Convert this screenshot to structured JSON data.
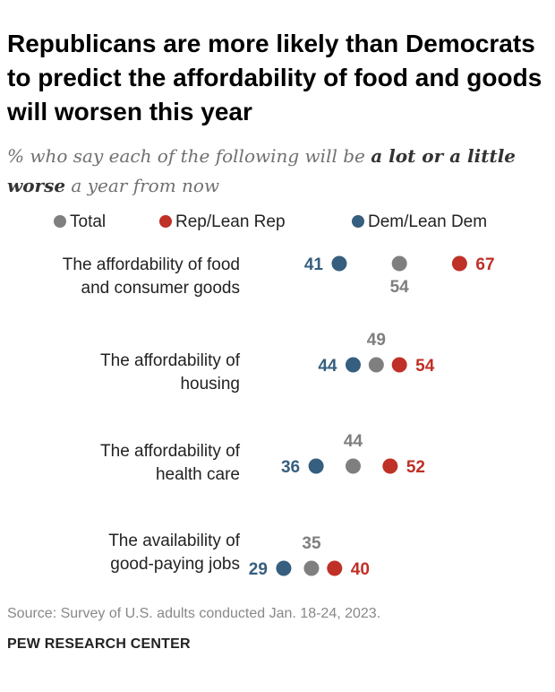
{
  "title": "Republicans are more likely than Democrats to predict the affordability of food and goods will worsen this year",
  "subtitle": {
    "pre": "% who say each of the following will be ",
    "emphasis": "a lot or a little worse",
    "post": " a year from now"
  },
  "legend": [
    {
      "label": "Total",
      "color": "#7f7f7f"
    },
    {
      "label": "Rep/Lean Rep",
      "color": "#bf3026"
    },
    {
      "label": "Dem/Lean Dem",
      "color": "#365e7e"
    }
  ],
  "chart_data": {
    "type": "dot",
    "categories": [
      "The affordability of food and consumer goods",
      "The affordability of housing",
      "The affordability of health care",
      "The availability of good-paying jobs"
    ],
    "category_lines": [
      [
        "The affordability of food",
        "and consumer goods"
      ],
      [
        "The affordability of",
        "housing"
      ],
      [
        "The affordability of",
        "health care"
      ],
      [
        "The availability of",
        "good-paying jobs"
      ]
    ],
    "series": [
      {
        "name": "Dem/Lean Dem",
        "values": [
          41,
          44,
          36,
          29
        ],
        "color": "#365e7e"
      },
      {
        "name": "Total",
        "values": [
          54,
          49,
          44,
          35
        ],
        "color": "#7f7f7f"
      },
      {
        "name": "Rep/Lean Rep",
        "values": [
          67,
          54,
          52,
          40
        ],
        "color": "#bf3026"
      }
    ],
    "xlim": [
      0,
      100
    ]
  },
  "source": "Source: Survey of U.S. adults conducted Jan. 18-24, 2023.",
  "brand": "PEW RESEARCH CENTER"
}
